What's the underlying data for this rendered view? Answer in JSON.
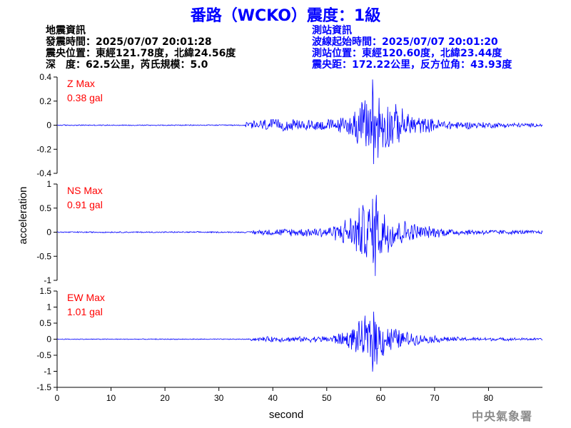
{
  "title": "番路（WCKO）震度：1級",
  "event_info": {
    "heading": "地震資訊",
    "time": "發震時間：2025/07/07 20:01:28",
    "location": "震央位置：東經121.78度，北緯24.56度",
    "depth_magnitude": "深　度：62.5公里，芮氏規模：5.0"
  },
  "station_info": {
    "heading": "測站資訊",
    "wave_start": "波線起始時間：2025/07/07 20:01:20",
    "location": "測站位置：東經120.60度，北緯23.44度",
    "distance": "震央距：172.22公里，反方位角：43.93度"
  },
  "credit": "中央氣象署",
  "colors": {
    "trace": "#0000ff",
    "label": "#ff0000",
    "title": "#0000ff",
    "axis": "#000000"
  },
  "chart_data": {
    "type": "line",
    "xlabel": "second",
    "ylabel": "acceleration",
    "xlim": [
      0,
      90
    ],
    "x_ticks": [
      "0",
      "10",
      "20",
      "30",
      "40",
      "50",
      "60",
      "70",
      "80"
    ],
    "grid": false,
    "panels": [
      {
        "name": "Z",
        "max_label": "Z Max",
        "max_value": "0.38 gal",
        "ylim": [
          -0.4,
          0.4
        ],
        "y_ticks": [
          "0.4",
          "0.2",
          "0",
          "-0.2",
          "-0.4"
        ],
        "peak": 0.38,
        "onset": 35,
        "noise": 0.005,
        "envelope": [
          [
            35,
            0.03
          ],
          [
            38,
            0.06
          ],
          [
            45,
            0.05
          ],
          [
            52,
            0.06
          ],
          [
            55,
            0.13
          ],
          [
            57,
            0.25
          ],
          [
            58.5,
            0.38
          ],
          [
            61,
            0.25
          ],
          [
            64,
            0.15
          ],
          [
            68,
            0.07
          ],
          [
            75,
            0.035
          ],
          [
            90,
            0.015
          ]
        ]
      },
      {
        "name": "NS",
        "max_label": "NS Max",
        "max_value": "0.91 gal",
        "ylim": [
          -1,
          1
        ],
        "y_ticks": [
          "1",
          "0.5",
          "0",
          "-0.5",
          "-1"
        ],
        "peak": 0.91,
        "onset": 36,
        "noise": 0.015,
        "envelope": [
          [
            36,
            0.05
          ],
          [
            40,
            0.08
          ],
          [
            46,
            0.1
          ],
          [
            51,
            0.15
          ],
          [
            54,
            0.35
          ],
          [
            57,
            0.7
          ],
          [
            59,
            0.91
          ],
          [
            61,
            0.55
          ],
          [
            64,
            0.3
          ],
          [
            68,
            0.15
          ],
          [
            75,
            0.07
          ],
          [
            90,
            0.04
          ]
        ]
      },
      {
        "name": "EW",
        "max_label": "EW Max",
        "max_value": "1.01 gal",
        "ylim": [
          -1.5,
          1.5
        ],
        "y_ticks": [
          "1.5",
          "1",
          "0.5",
          "0",
          "-0.5",
          "-1",
          "-1.5"
        ],
        "peak": 1.01,
        "onset": 36,
        "noise": 0.015,
        "envelope": [
          [
            36,
            0.06
          ],
          [
            40,
            0.1
          ],
          [
            45,
            0.09
          ],
          [
            50,
            0.12
          ],
          [
            54,
            0.3
          ],
          [
            57,
            0.75
          ],
          [
            58.5,
            1.01
          ],
          [
            61,
            0.55
          ],
          [
            64,
            0.3
          ],
          [
            68,
            0.15
          ],
          [
            75,
            0.07
          ],
          [
            90,
            0.04
          ]
        ]
      }
    ]
  }
}
